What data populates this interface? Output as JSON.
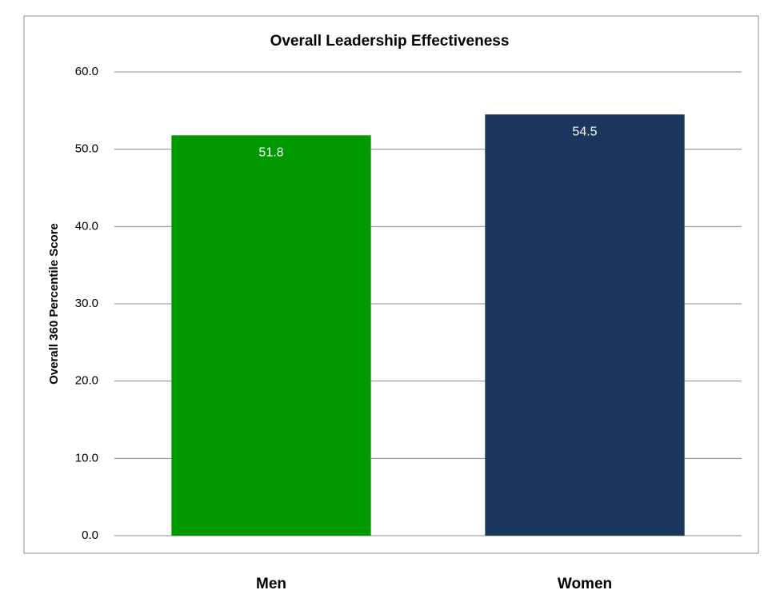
{
  "chart_data": {
    "type": "bar",
    "title": "Overall Leadership Effectiveness",
    "y_label": "Overall 360  Percentile Score",
    "categories": [
      "Men",
      "Women"
    ],
    "values": [
      51.8,
      54.5
    ],
    "colors": [
      "#009900",
      "#1b365d"
    ],
    "ylim": [
      0,
      60
    ],
    "yticks": [
      {
        "value": 0,
        "label": "0.0"
      },
      {
        "value": 10,
        "label": "10.0"
      },
      {
        "value": 20,
        "label": "20.0"
      },
      {
        "value": 30,
        "label": "30.0"
      },
      {
        "value": 40,
        "label": "40.0"
      },
      {
        "value": 50,
        "label": "50.0"
      },
      {
        "value": 60,
        "label": "60.0"
      }
    ],
    "grid": true
  }
}
